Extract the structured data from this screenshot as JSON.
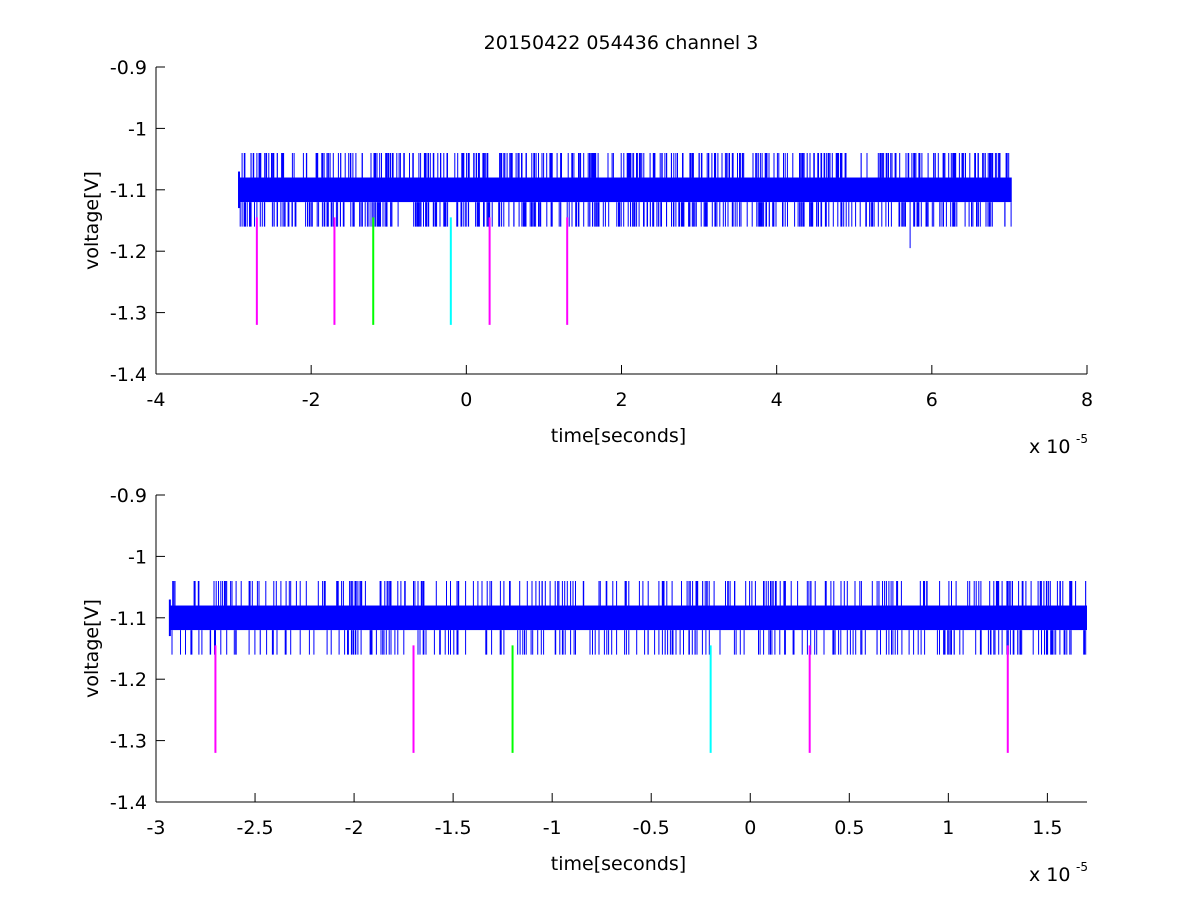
{
  "figure": {
    "title": "20150422 054436 channel 3",
    "colors": {
      "background": "#ffffff",
      "axes": "#000000",
      "signal": "#0000ff",
      "marker_magenta": "#ff00ff",
      "marker_green": "#00ff00",
      "marker_cyan": "#00ffff"
    }
  },
  "chart_data": [
    {
      "type": "line",
      "title": "20150422 054436 channel 3",
      "xlabel": "time[seconds]",
      "ylabel": "voltage[V]",
      "x_multiplier_base": "x 10",
      "x_multiplier_exp": "-5",
      "xlim": [
        -4,
        8
      ],
      "ylim": [
        -1.4,
        -0.9
      ],
      "xticks": [
        -4,
        -2,
        0,
        2,
        4,
        6,
        8
      ],
      "xtick_labels": [
        "-4",
        "-2",
        "0",
        "2",
        "4",
        "6",
        "8"
      ],
      "yticks": [
        -1.4,
        -1.3,
        -1.2,
        -1.1,
        -1,
        -0.9
      ],
      "ytick_labels": [
        "-1.4",
        "-1.3",
        "-1.2",
        "-1.1",
        "-1",
        "-0.9"
      ],
      "grid": false,
      "series": [
        {
          "color": "#0000ff",
          "x_range": [
            -2.93,
            7.03
          ],
          "band": [
            -1.12,
            -1.08
          ],
          "spike_levels": [
            -1.16,
            -1.04
          ],
          "outlier": {
            "x": 5.72,
            "y": -1.195
          }
        }
      ],
      "markers": [
        {
          "x": -2.7,
          "y_bottom": -1.32,
          "y_top": -1.145,
          "color": "#ff00ff"
        },
        {
          "x": -1.7,
          "y_bottom": -1.32,
          "y_top": -1.145,
          "color": "#ff00ff"
        },
        {
          "x": -1.2,
          "y_bottom": -1.32,
          "y_top": -1.145,
          "color": "#00ff00"
        },
        {
          "x": -0.2,
          "y_bottom": -1.32,
          "y_top": -1.145,
          "color": "#00ffff"
        },
        {
          "x": 0.3,
          "y_bottom": -1.32,
          "y_top": -1.145,
          "color": "#ff00ff"
        },
        {
          "x": 1.3,
          "y_bottom": -1.32,
          "y_top": -1.145,
          "color": "#ff00ff"
        }
      ]
    },
    {
      "type": "line",
      "xlabel": "time[seconds]",
      "ylabel": "voltage[V]",
      "x_multiplier_base": "x 10",
      "x_multiplier_exp": "-5",
      "xlim": [
        -3.0,
        1.7
      ],
      "ylim": [
        -1.4,
        -0.9
      ],
      "xticks": [
        -3,
        -2.5,
        -2,
        -1.5,
        -1,
        -0.5,
        0,
        0.5,
        1,
        1.5
      ],
      "xtick_labels": [
        "-3",
        "-2.5",
        "-2",
        "-1.5",
        "-1",
        "-0.5",
        "0",
        "0.5",
        "1",
        "1.5"
      ],
      "yticks": [
        -1.4,
        -1.3,
        -1.2,
        -1.1,
        -1,
        -0.9
      ],
      "ytick_labels": [
        "-1.4",
        "-1.3",
        "-1.2",
        "-1.1",
        "-1",
        "-0.9"
      ],
      "grid": false,
      "series": [
        {
          "color": "#0000ff",
          "x_range": [
            -2.93,
            1.7
          ],
          "band": [
            -1.12,
            -1.08
          ],
          "spike_levels": [
            -1.16,
            -1.04
          ]
        }
      ],
      "markers": [
        {
          "x": -2.7,
          "y_bottom": -1.32,
          "y_top": -1.145,
          "color": "#ff00ff"
        },
        {
          "x": -1.7,
          "y_bottom": -1.32,
          "y_top": -1.145,
          "color": "#ff00ff"
        },
        {
          "x": -1.2,
          "y_bottom": -1.32,
          "y_top": -1.145,
          "color": "#00ff00"
        },
        {
          "x": -0.2,
          "y_bottom": -1.32,
          "y_top": -1.145,
          "color": "#00ffff"
        },
        {
          "x": 0.3,
          "y_bottom": -1.32,
          "y_top": -1.145,
          "color": "#ff00ff"
        },
        {
          "x": 1.3,
          "y_bottom": -1.32,
          "y_top": -1.145,
          "color": "#ff00ff"
        }
      ]
    }
  ]
}
